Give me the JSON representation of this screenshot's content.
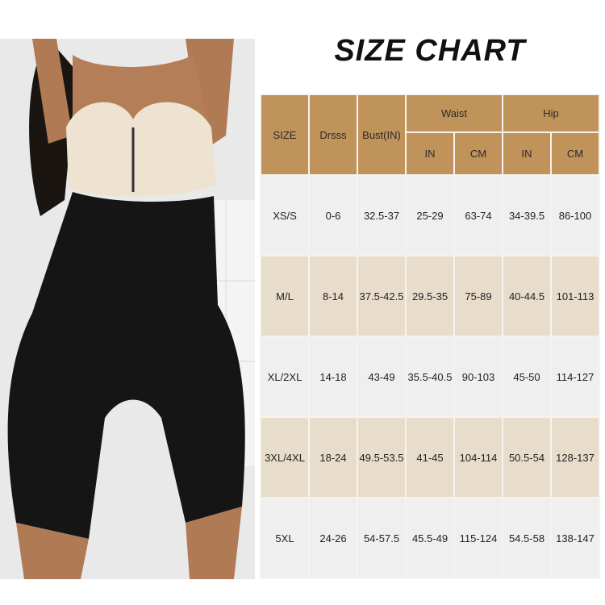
{
  "title": "SIZE CHART",
  "colors": {
    "header": "#c0935a",
    "row_light": "#efefef",
    "row_tan": "#e8dccb"
  },
  "photo": {
    "subject": "model wearing black high-waist shapewear shorts and nude bra"
  },
  "table": {
    "headers": {
      "size": "SIZE",
      "dress": "Drsss",
      "bust": "Bust(IN)",
      "waist": "Waist",
      "hip": "Hip",
      "waist_in": "IN",
      "waist_cm": "CM",
      "hip_in": "IN",
      "hip_cm": "CM"
    },
    "rows": [
      [
        "XS/S",
        "0-6",
        "32.5-37",
        "25-29",
        "63-74",
        "34-39.5",
        "86-100"
      ],
      [
        "M/L",
        "8-14",
        "37.5-42.5",
        "29.5-35",
        "75-89",
        "40-44.5",
        "101-113"
      ],
      [
        "XL/2XL",
        "14-18",
        "43-49",
        "35.5-40.5",
        "90-103",
        "45-50",
        "114-127"
      ],
      [
        "3XL/4XL",
        "18-24",
        "49.5-53.5",
        "41-45",
        "104-114",
        "50.5-54",
        "128-137"
      ],
      [
        "5XL",
        "24-26",
        "54-57.5",
        "45.5-49",
        "115-124",
        "54.5-58",
        "138-147"
      ]
    ]
  }
}
